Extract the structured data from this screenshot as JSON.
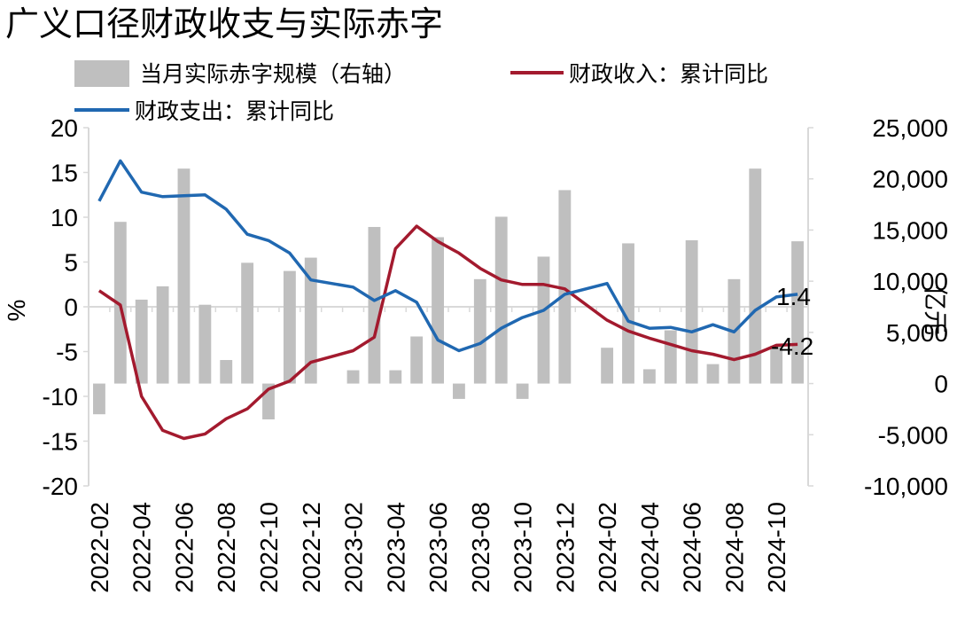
{
  "chart_data": {
    "type": "bar+line",
    "title": "广义口径财政收支与实际赤字",
    "legend": [
      "当月实际赤字规模（右轴）",
      "财政收入：累计同比",
      "财政支出：累计同比"
    ],
    "ylabel_left": "%",
    "ylabel_right": "亿元",
    "ylim_left": [
      -20,
      20
    ],
    "ylim_right": [
      -10000,
      25000
    ],
    "yticks_left": [
      "20",
      "15",
      "10",
      "5",
      "0",
      "-5",
      "-10",
      "-15",
      "-20"
    ],
    "yticks_right": [
      "25,000",
      "20,000",
      "15,000",
      "10,000",
      "5,000",
      "0",
      "-5,000",
      "-10,000"
    ],
    "x_tick_labels": [
      "2022-02",
      "2022-04",
      "2022-06",
      "2022-08",
      "2022-10",
      "2022-12",
      "2023-02",
      "2023-04",
      "2023-06",
      "2023-08",
      "2023-10",
      "2023-12",
      "2024-02",
      "2024-04",
      "2024-06",
      "2024-08",
      "2024-10"
    ],
    "x": [
      "2022-02",
      "2022-03",
      "2022-04",
      "2022-05",
      "2022-06",
      "2022-07",
      "2022-08",
      "2022-09",
      "2022-10",
      "2022-11",
      "2022-12",
      "2023-01",
      "2023-02",
      "2023-03",
      "2023-04",
      "2023-05",
      "2023-06",
      "2023-07",
      "2023-08",
      "2023-09",
      "2023-10",
      "2023-11",
      "2023-12",
      "2024-01",
      "2024-02",
      "2024-03",
      "2024-04",
      "2024-05",
      "2024-06",
      "2024-07",
      "2024-08",
      "2024-09",
      "2024-10",
      "2024-11"
    ],
    "series": [
      {
        "name": "当月实际赤字规模（右轴）",
        "type": "bar",
        "axis": "right",
        "color": "#bfbfbf",
        "values": [
          -3000,
          15800,
          8200,
          9500,
          21000,
          7700,
          2300,
          11800,
          -3500,
          11000,
          12300,
          null,
          1300,
          15300,
          1300,
          4600,
          14300,
          -1500,
          10200,
          16300,
          -1500,
          12400,
          18900,
          null,
          3500,
          13700,
          1400,
          5200,
          14000,
          1900,
          10200,
          21000,
          3700,
          13900
        ]
      },
      {
        "name": "财政收入：累计同比",
        "type": "line",
        "axis": "left",
        "color": "#a31a2e",
        "values": [
          1.8,
          0.2,
          -10.0,
          -13.8,
          -14.7,
          -14.2,
          -12.5,
          -11.4,
          -9.2,
          -8.3,
          -6.2,
          null,
          -4.9,
          -3.4,
          6.5,
          9.0,
          7.3,
          6.0,
          4.3,
          3.0,
          2.5,
          2.5,
          2.0,
          null,
          -1.5,
          -2.7,
          -3.5,
          -4.2,
          -4.9,
          -5.3,
          -5.9,
          -5.3,
          -4.3,
          -4.2
        ]
      },
      {
        "name": "财政支出：累计同比",
        "type": "line",
        "axis": "left",
        "color": "#2068b1",
        "values": [
          11.8,
          16.3,
          12.8,
          12.3,
          12.4,
          12.5,
          10.9,
          8.1,
          7.4,
          6.0,
          3.0,
          null,
          2.2,
          0.7,
          1.8,
          0.5,
          -3.7,
          -4.9,
          -4.1,
          -2.4,
          -1.2,
          -0.4,
          1.4,
          null,
          2.6,
          -1.6,
          -2.4,
          -2.3,
          -2.8,
          -2.0,
          -2.8,
          -0.4,
          1.1,
          1.4
        ]
      }
    ],
    "annotations": [
      "1.4",
      "-4.2"
    ]
  }
}
